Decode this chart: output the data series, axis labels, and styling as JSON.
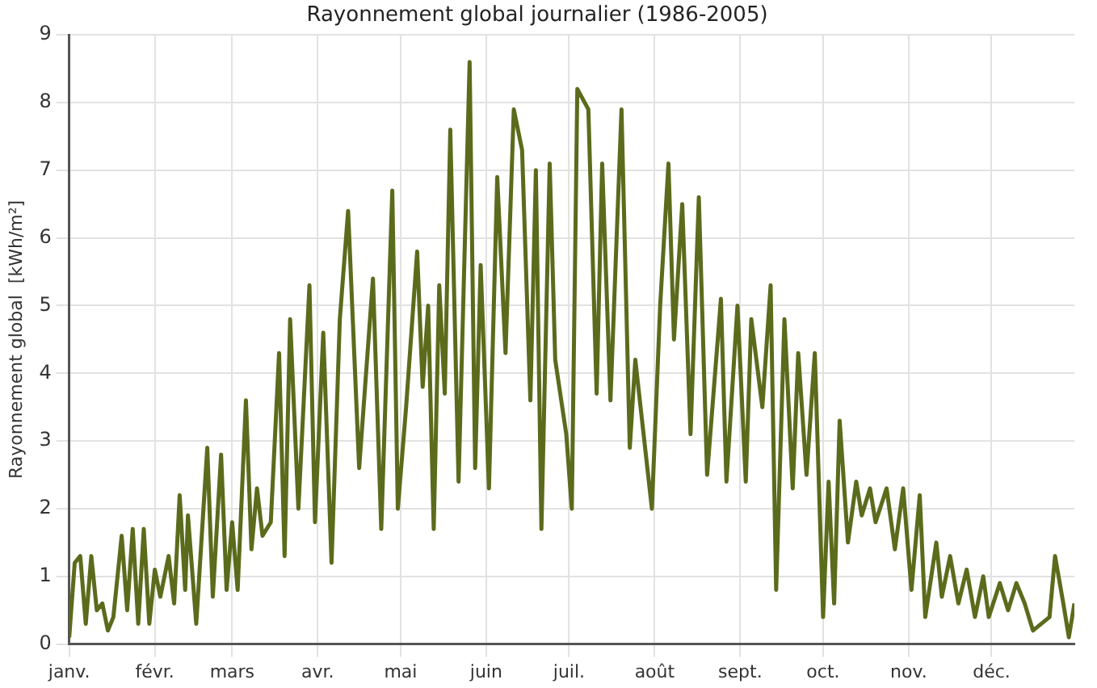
{
  "chart_data": {
    "type": "line",
    "title": "Rayonnement global journalier (1986-2005)",
    "ylabel": "Rayonnement global  [kWh/m²]",
    "x": [
      "--01-01",
      "--01-03",
      "--01-05",
      "--01-07",
      "--01-09",
      "--01-11",
      "--01-13",
      "--01-15",
      "--01-17",
      "--01-20",
      "--01-22",
      "--01-24",
      "--01-26",
      "--01-28",
      "--01-30",
      "--02-01",
      "--02-03",
      "--02-06",
      "--02-08",
      "--02-10",
      "--02-12",
      "--02-13",
      "--02-16",
      "--02-20",
      "--02-22",
      "--02-25",
      "--02-27",
      "--03-01",
      "--03-03",
      "--03-06",
      "--03-08",
      "--03-10",
      "--03-12",
      "--03-15",
      "--03-18",
      "--03-20",
      "--03-22",
      "--03-25",
      "--03-29",
      "--03-31",
      "--04-03",
      "--04-06",
      "--04-09",
      "--04-12",
      "--04-16",
      "--04-21",
      "--04-24",
      "--04-28",
      "--04-30",
      "--05-03",
      "--05-07",
      "--05-09",
      "--05-11",
      "--05-13",
      "--05-15",
      "--05-17",
      "--05-19",
      "--05-22",
      "--05-26",
      "--05-28",
      "--05-30",
      "--06-02",
      "--06-05",
      "--06-08",
      "--06-11",
      "--06-14",
      "--06-17",
      "--06-19",
      "--06-21",
      "--06-24",
      "--06-26",
      "--06-30",
      "--07-02",
      "--07-04",
      "--07-08",
      "--07-11",
      "--07-13",
      "--07-16",
      "--07-20",
      "--07-23",
      "--07-25",
      "--07-31",
      "--08-02",
      "--08-03",
      "--08-06",
      "--08-08",
      "--08-11",
      "--08-14",
      "--08-17",
      "--08-20",
      "--08-25",
      "--08-27",
      "--08-31",
      "--09-03",
      "--09-05",
      "--09-09",
      "--09-12",
      "--09-14",
      "--09-17",
      "--09-20",
      "--09-22",
      "--09-25",
      "--09-28",
      "--10-01",
      "--10-03",
      "--10-05",
      "--10-07",
      "--10-10",
      "--10-13",
      "--10-15",
      "--10-18",
      "--10-20",
      "--10-24",
      "--10-27",
      "--10-30",
      "--11-02",
      "--11-05",
      "--11-07",
      "--11-11",
      "--11-13",
      "--11-16",
      "--11-19",
      "--11-22",
      "--11-25",
      "--11-28",
      "--11-30",
      "--12-04",
      "--12-07",
      "--12-10",
      "--12-13",
      "--12-16",
      "--12-22",
      "--12-24",
      "--12-27",
      "--12-29",
      "--12-31"
    ],
    "series": [
      {
        "color": "#5b6b1c",
        "values": [
          0.1,
          1.2,
          1.3,
          0.3,
          1.3,
          0.5,
          0.6,
          0.2,
          0.4,
          1.6,
          0.5,
          1.7,
          0.3,
          1.7,
          0.3,
          1.1,
          0.7,
          1.3,
          0.6,
          2.2,
          0.8,
          1.9,
          0.3,
          2.9,
          0.7,
          2.8,
          0.8,
          1.8,
          0.8,
          3.6,
          1.4,
          2.3,
          1.6,
          1.8,
          4.3,
          1.3,
          4.8,
          2.0,
          5.3,
          1.8,
          4.6,
          1.2,
          4.8,
          6.4,
          2.6,
          5.4,
          1.7,
          6.7,
          2.0,
          3.5,
          5.8,
          3.8,
          5.0,
          1.7,
          5.3,
          3.7,
          7.6,
          2.4,
          8.6,
          2.6,
          5.6,
          2.3,
          6.9,
          4.3,
          7.9,
          7.3,
          3.6,
          7.0,
          1.7,
          7.1,
          4.2,
          3.1,
          2.0,
          8.2,
          7.9,
          3.7,
          7.1,
          3.6,
          7.9,
          2.9,
          4.2,
          2.0,
          4.0,
          5.0,
          7.1,
          4.5,
          6.5,
          3.1,
          6.6,
          2.5,
          5.1,
          2.4,
          5.0,
          2.4,
          4.8,
          3.5,
          5.3,
          0.8,
          4.8,
          2.3,
          4.3,
          2.5,
          4.3,
          0.4,
          2.4,
          0.6,
          3.3,
          1.5,
          2.4,
          1.9,
          2.3,
          1.8,
          2.3,
          1.4,
          2.3,
          0.8,
          2.2,
          0.4,
          1.5,
          0.7,
          1.3,
          0.6,
          1.1,
          0.4,
          1.0,
          0.4,
          0.9,
          0.5,
          0.9,
          0.6,
          0.2,
          0.4,
          1.3,
          0.6,
          0.1,
          0.6
        ]
      }
    ],
    "xlim": [
      "--01-01",
      "--12-31"
    ],
    "xticks": [
      {
        "value": "--01-01",
        "label": "janv."
      },
      {
        "value": "--02-01",
        "label": "févr."
      },
      {
        "value": "--03-01",
        "label": "mars"
      },
      {
        "value": "--04-01",
        "label": "avr."
      },
      {
        "value": "--05-01",
        "label": "mai"
      },
      {
        "value": "--06-01",
        "label": "juin"
      },
      {
        "value": "--07-01",
        "label": "juil."
      },
      {
        "value": "--08-01",
        "label": "août"
      },
      {
        "value": "--09-01",
        "label": "sept."
      },
      {
        "value": "--10-01",
        "label": "oct."
      },
      {
        "value": "--11-01",
        "label": "nov."
      },
      {
        "value": "--12-01",
        "label": "déc."
      }
    ],
    "ylim": [
      0,
      9
    ],
    "yticks": [
      0,
      1,
      2,
      3,
      4,
      5,
      6,
      7,
      8,
      9
    ],
    "grid": true,
    "marker": "none",
    "line_style": "solid"
  }
}
